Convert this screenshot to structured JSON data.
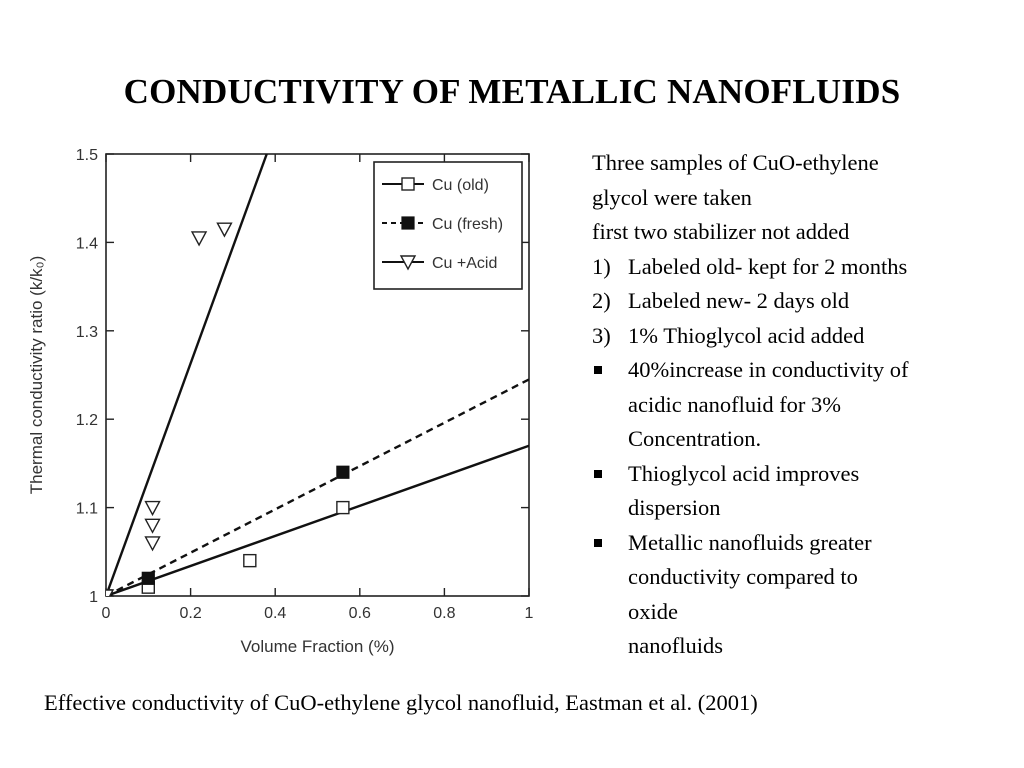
{
  "slide": {
    "title": "CONDUCTIVITY OF METALLIC NANOFLUIDS",
    "caption": "Effective conductivity of CuO-ethylene glycol nanofluid, Eastman et al. (2001)"
  },
  "description": {
    "intro_lines": [
      "Three samples of CuO-ethylene",
      "glycol were taken",
      "first two stabilizer not added"
    ],
    "numbered": [
      {
        "num": "1)",
        "text": "Labeled old- kept for 2 months"
      },
      {
        "num": "2)",
        "text": "Labeled new- 2 days old"
      },
      {
        "num": "3)",
        "text": "1% Thioglycol acid added"
      }
    ],
    "bullets": [
      {
        "lines": [
          "40%increase in conductivity of",
          "acidic nanofluid for 3%",
          "Concentration."
        ]
      },
      {
        "lines": [
          "Thioglycol acid improves",
          "dispersion"
        ]
      },
      {
        "lines": [
          "Metallic nanofluids greater",
          "conductivity compared to",
          "oxide",
          "nanofluids"
        ]
      }
    ]
  },
  "chart_data": {
    "type": "scatter",
    "xlabel": "Volume Fraction (%)",
    "ylabel": "Thermal conductivity ratio (k/k₀)",
    "xlim": [
      0,
      1.0
    ],
    "ylim": [
      1.0,
      1.5
    ],
    "x_ticks": [
      "0",
      "0.2",
      "0.4",
      "0.6",
      "0.8",
      "1"
    ],
    "x_tick_values": [
      0,
      0.2,
      0.4,
      0.6,
      0.8,
      1.0
    ],
    "y_ticks": [
      "1",
      "1.1",
      "1.2",
      "1.3",
      "1.4",
      "1.5"
    ],
    "y_tick_values": [
      1.0,
      1.1,
      1.2,
      1.3,
      1.4,
      1.5
    ],
    "grid": false,
    "legend_position": "top-right",
    "series": [
      {
        "name": "Cu (old)",
        "marker": "open-square",
        "line": "solid",
        "points": [
          [
            0,
            1.0
          ],
          [
            0.1,
            1.01
          ],
          [
            0.34,
            1.04
          ],
          [
            0.56,
            1.1
          ]
        ],
        "fit": [
          [
            0,
            1.0
          ],
          [
            1.0,
            1.17
          ]
        ]
      },
      {
        "name": "Cu (fresh)",
        "marker": "filled-square",
        "line": "dashed",
        "points": [
          [
            0,
            1.0
          ],
          [
            0.1,
            1.02
          ],
          [
            0.56,
            1.14
          ]
        ],
        "fit": [
          [
            0,
            1.0
          ],
          [
            1.0,
            1.245
          ]
        ]
      },
      {
        "name": "Cu +Acid",
        "marker": "open-triangle-down",
        "line": "solid",
        "points": [
          [
            0,
            1.0
          ],
          [
            0.11,
            1.06
          ],
          [
            0.11,
            1.08
          ],
          [
            0.11,
            1.1
          ],
          [
            0.22,
            1.405
          ],
          [
            0.28,
            1.415
          ]
        ],
        "fit": [
          [
            0,
            1.0
          ],
          [
            0.38,
            1.5
          ]
        ]
      }
    ]
  }
}
